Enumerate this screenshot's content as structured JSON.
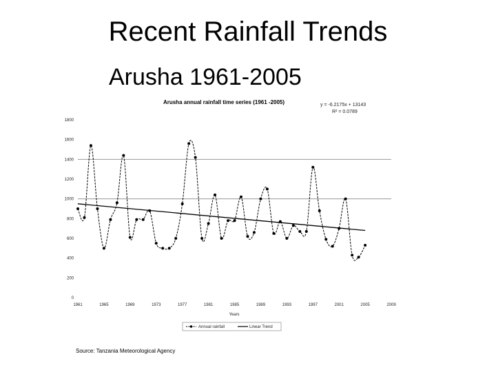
{
  "slide": {
    "title": "Recent Rainfall Trends",
    "subtitle": "Arusha 1961-2005",
    "source": "Source: Tanzania Meteorological Agency"
  },
  "chart_data": {
    "type": "line",
    "title": "Arusha annual rainfall time series (1961 -2005)",
    "xlabel": "Years",
    "ylabel": "",
    "xlim": [
      1961,
      2009
    ],
    "ylim": [
      0,
      1800
    ],
    "x_ticks": [
      "1961",
      "1965",
      "1969",
      "1973",
      "1977",
      "1981",
      "1985",
      "1989",
      "1993",
      "1997",
      "2001",
      "2005",
      "2009"
    ],
    "y_ticks": [
      "0",
      "200",
      "400",
      "600",
      "800",
      "1000",
      "1200",
      "1400",
      "1600",
      "1800"
    ],
    "gridlines_y": [
      1000,
      1400
    ],
    "equation": "y = -6.2175x + 13143",
    "r_squared": "R² = 0.0789",
    "legend_position": "bottom",
    "series": [
      {
        "name": "Annual rainfall",
        "color": "#000000",
        "x": [
          1961,
          1962,
          1963,
          1964,
          1965,
          1966,
          1967,
          1968,
          1969,
          1970,
          1971,
          1972,
          1973,
          1974,
          1975,
          1976,
          1977,
          1978,
          1979,
          1980,
          1981,
          1982,
          1983,
          1984,
          1985,
          1986,
          1987,
          1988,
          1989,
          1990,
          1991,
          1992,
          1993,
          1994,
          1995,
          1996,
          1997,
          1998,
          1999,
          2000,
          2001,
          2002,
          2003,
          2004,
          2005
        ],
        "values": [
          900,
          810,
          1540,
          900,
          500,
          790,
          960,
          1440,
          610,
          790,
          790,
          880,
          550,
          500,
          500,
          600,
          950,
          1560,
          1420,
          600,
          750,
          1040,
          600,
          780,
          780,
          1020,
          620,
          660,
          1000,
          1100,
          650,
          770,
          600,
          730,
          670,
          670,
          1320,
          880,
          590,
          520,
          700,
          1000,
          430,
          410,
          530
        ]
      },
      {
        "name": "Linear Trend",
        "color": "#000000",
        "x": [
          1961,
          2005
        ],
        "values": [
          950,
          680
        ]
      }
    ]
  }
}
